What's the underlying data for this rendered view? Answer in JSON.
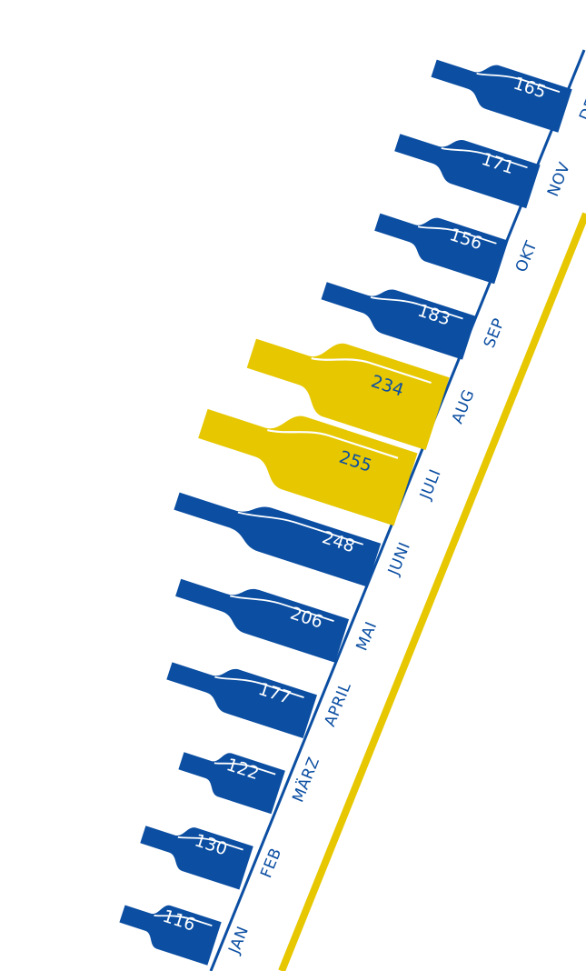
{
  "chart_data": {
    "type": "bar",
    "title": "",
    "xlabel": "",
    "ylabel": "",
    "categories": [
      "JAN",
      "FEB",
      "MÄRZ",
      "APRIL",
      "MAI",
      "JUNI",
      "JULI",
      "AUG",
      "SEP",
      "OKT",
      "NOV",
      "DEZ"
    ],
    "values": [
      116,
      130,
      122,
      177,
      206,
      248,
      255,
      234,
      183,
      156,
      171,
      165
    ],
    "highlighted": [
      "JULI",
      "AUG"
    ],
    "grid": false,
    "legend": "none"
  },
  "colors": {
    "blue": "#0b4ea2",
    "yellow": "#e6c700",
    "value_text": "#ffffff",
    "highlight_value_text": "#0b4ea2",
    "month_text": "#0b4ea2"
  },
  "icon": "wine-bottle-icon"
}
